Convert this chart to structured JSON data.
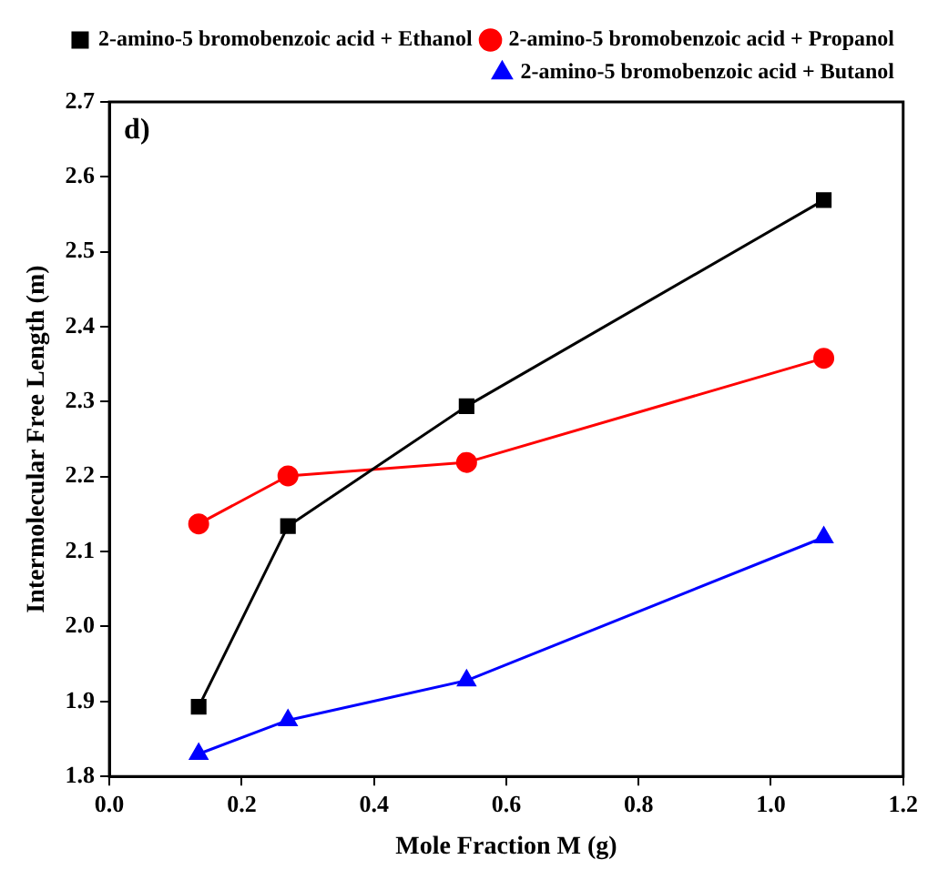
{
  "chart_data": {
    "type": "line",
    "xlabel": "Mole Fraction M (g)",
    "ylabel": "Intermolecular Free Length (m)",
    "annotations": [
      "d)"
    ],
    "x": [
      0.135,
      0.27,
      0.54,
      1.08
    ],
    "series": [
      {
        "name": "2-amino-5 bromobenzoic acid + Ethanol",
        "color": "#000000",
        "marker": "square",
        "values": [
          1.893,
          2.134,
          2.294,
          2.569
        ]
      },
      {
        "name": "2-amino-5 bromobenzoic acid + Propanol",
        "color": "#ff0000",
        "marker": "circle",
        "values": [
          2.137,
          2.201,
          2.219,
          2.358
        ]
      },
      {
        "name": "2-amino-5 bromobenzoic acid + Butanol",
        "color": "#0000ff",
        "marker": "triangle",
        "values": [
          1.83,
          1.875,
          1.928,
          2.119
        ]
      }
    ],
    "xlim": [
      0,
      1.2
    ],
    "xticks": [
      {
        "value": 0,
        "label": "0.0"
      },
      0.2,
      0.4,
      0.6,
      0.8,
      {
        "value": 1,
        "label": "1.0"
      },
      1.2
    ],
    "ylim": [
      1.8,
      2.7
    ],
    "yticks": [
      1.8,
      1.9,
      {
        "value": 2,
        "label": "2.0"
      },
      2.1,
      2.2,
      2.3,
      2.4,
      2.5,
      2.6,
      2.7
    ],
    "grid": false,
    "legend": "top right",
    "line_style": "solid"
  }
}
